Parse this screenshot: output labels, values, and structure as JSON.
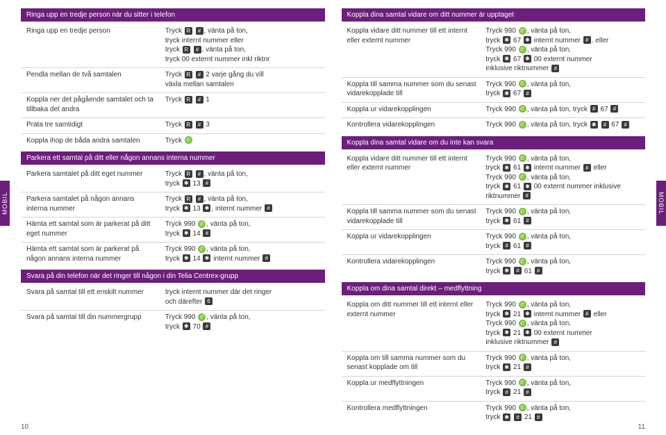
{
  "sidelabel": "MOBIL",
  "pagenum_left": "10",
  "pagenum_right": "11",
  "icons": {
    "R": "R",
    "hash": "#",
    "phone": "✆",
    "star": "✱",
    "four": "4",
    "six": "6"
  },
  "left_col": {
    "sec1": {
      "title": "Ringa upp en tredje person när du sitter i telefon",
      "rows": [
        {
          "l": "Ringa upp en tredje person",
          "r": [
            [
              "Tryck ",
              "R",
              " ",
              "hash",
              ", vänta på ton,"
            ],
            [
              "tryck internt nummer eller"
            ],
            [
              "tryck ",
              "R",
              " ",
              "hash",
              ", vänta på ton,"
            ],
            [
              "tryck 00 externt nummer inkl riktnr"
            ]
          ]
        },
        {
          "l": "Pendla mellan de två samtalen",
          "r": [
            [
              "Tryck ",
              "R",
              " ",
              "hash",
              " 2 varje gång du vill"
            ],
            [
              "växla mellan samtalen"
            ]
          ]
        },
        {
          "l": "Koppla ner det pågående samtalet och ta tillbaka det andra",
          "r": [
            [
              "Tryck ",
              "R",
              " ",
              "hash",
              " 1"
            ]
          ]
        },
        {
          "l": "Prata tre samtidigt",
          "r": [
            [
              "Tryck ",
              "R",
              " ",
              "hash",
              " 3"
            ]
          ]
        },
        {
          "l": "Koppla ihop de båda andra samtalen",
          "r": [
            [
              "Tryck ",
              "phone"
            ]
          ]
        }
      ]
    },
    "sec2": {
      "title": "Parkera ett samtal på ditt eller någon annans interna nummer",
      "rows": [
        {
          "l": "Parkera samtalet på ditt eget nummer",
          "r": [
            [
              "Tryck ",
              "R",
              " ",
              "hash",
              ", vänta på ton,"
            ],
            [
              "tryck ",
              "star",
              " 13 ",
              "hash"
            ]
          ]
        },
        {
          "l": "Parkera samtalet på någon annans interna nummer",
          "r": [
            [
              "Tryck ",
              "R",
              " ",
              "hash",
              ", vänta på ton,"
            ],
            [
              "tryck ",
              "star",
              " 13 ",
              "star",
              ", internt nummer ",
              "hash"
            ]
          ]
        },
        {
          "l": "Hämta ett samtal som är parkerat på ditt eget nummer",
          "r": [
            [
              "Tryck 990 ",
              "phone",
              ", vänta på ton,"
            ],
            [
              "tryck ",
              "star",
              " 14 ",
              "hash"
            ]
          ]
        },
        {
          "l": "Hämta ett samtal som är parkerat på någon annans interna nummer",
          "r": [
            [
              "Tryck 990 ",
              "phone",
              ", vänta på ton,"
            ],
            [
              "tryck ",
              "star",
              " 14 ",
              "star",
              " internt nummer ",
              "hash"
            ]
          ]
        }
      ]
    },
    "sec3": {
      "title": "Svara på din telefon när det ringer till någon i din Telia Centrex-grupp",
      "rows": [
        {
          "l": "Svara på samtal till ett enskilt nummer",
          "r": [
            [
              "tryck internt nummer där det ringer"
            ],
            [
              "och därefter ",
              "six"
            ]
          ]
        },
        {
          "l": "Svara på samtal till din nummergrupp",
          "r": [
            [
              "Tryck 990 ",
              "phone",
              ", vänta på ton,"
            ],
            [
              "tryck ",
              "star",
              " 70 ",
              "hash"
            ]
          ]
        }
      ]
    }
  },
  "right_col": {
    "sec1": {
      "title": "Koppla dina samtal vidare om ditt nummer är upptaget",
      "rows": [
        {
          "l": "Koppla vidare ditt nummer till ett internt eller externt nummer",
          "r": [
            [
              "Tryck 990 ",
              "phone",
              ", vänta på ton,"
            ],
            [
              "tryck ",
              "star",
              " 67 ",
              "star",
              " internt nummer ",
              "hash",
              ". eller"
            ],
            [
              "Tryck 990 ",
              "phone",
              ", vänta på ton,"
            ],
            [
              "tryck ",
              "star",
              " 67 ",
              "star",
              " 00 externt nummer"
            ],
            [
              "inklusive riktnummer ",
              "hash"
            ]
          ]
        },
        {
          "l": "Koppla till samma nummer som du senast vidarekopplade till",
          "r": [
            [
              "Tryck 990 ",
              "phone",
              ", vänta på ton,"
            ],
            [
              "tryck ",
              "star",
              " 67 ",
              "hash"
            ]
          ]
        },
        {
          "l": "Koppla ur vidarekopplingen",
          "r": [
            [
              "Tryck 990 ",
              "phone",
              ", vänta på ton, tryck ",
              "hash",
              " 67 ",
              "hash"
            ]
          ]
        },
        {
          "l": "Kontrollera vidarekopplingen",
          "r": [
            [
              "Tryck 990 ",
              "phone",
              ", vänta på ton, tryck ",
              "star",
              " ",
              "hash",
              " 67 ",
              "hash"
            ]
          ]
        }
      ]
    },
    "sec2": {
      "title": "Koppla dina samtal vidare om du inte kan svara",
      "rows": [
        {
          "l": "Koppla vidare ditt nummer till ett internt eller externt nummer",
          "r": [
            [
              "Tryck 990 ",
              "phone",
              ", vänta på ton,"
            ],
            [
              "tryck ",
              "star",
              " 61 ",
              "star",
              " internt nummer ",
              "hash",
              " eller"
            ],
            [
              "Tryck 990 ",
              "phone",
              ", vänta på ton,"
            ],
            [
              "tryck ",
              "star",
              " 61 ",
              "star",
              " 00 externt nummer inklusive"
            ],
            [
              "riktnummer ",
              "hash"
            ]
          ]
        },
        {
          "l": "Koppla till samma nummer som du senast vidarekopplade till",
          "r": [
            [
              "Tryck 990 ",
              "phone",
              ", vänta på ton,"
            ],
            [
              "tryck ",
              "star",
              " 61 ",
              "hash"
            ]
          ]
        },
        {
          "l": "Koppla ur vidarekopplingen",
          "r": [
            [
              "Tryck 990 ",
              "phone",
              ", vänta på ton,"
            ],
            [
              "tryck ",
              "hash",
              " 61 ",
              "hash"
            ]
          ]
        },
        {
          "l": "Kontrollera vidarekopplingen",
          "r": [
            [
              "Tryck 990 ",
              "phone",
              ", vänta på ton,"
            ],
            [
              "tryck ",
              "star",
              " ",
              "hash",
              " 61 ",
              "hash"
            ]
          ]
        }
      ]
    },
    "sec3": {
      "title": "Koppla om dina samtal direkt – medflyttning",
      "rows": [
        {
          "l": "Koppla om ditt nummer till ett internt eller externt nummer",
          "r": [
            [
              "Tryck 990 ",
              "phone",
              ", vänta på ton,"
            ],
            [
              "tryck ",
              "star",
              " 21 ",
              "star",
              " internt nummer ",
              "hash",
              " eller"
            ],
            [
              "Tryck 990 ",
              "phone",
              ", vänta på ton,"
            ],
            [
              "tryck ",
              "star",
              " 21 ",
              "star",
              " 00 externt nummer"
            ],
            [
              "inklusive riktnummer ",
              "hash"
            ]
          ]
        },
        {
          "l": "Koppla om till samma nummer som du senast kopplade om till",
          "r": [
            [
              "Tryck 990 ",
              "phone",
              ", vänta på ton,"
            ],
            [
              "tryck ",
              "star",
              " 21 ",
              "hash"
            ]
          ]
        },
        {
          "l": "Koppla ur medflyttningen",
          "r": [
            [
              "Tryck 990 ",
              "phone",
              ", vänta på ton,"
            ],
            [
              "tryck ",
              "hash",
              " 21 ",
              "hash"
            ]
          ]
        },
        {
          "l": "Kontrollera medflyttningen",
          "r": [
            [
              "Tryck 990 ",
              "phone",
              ", vänta på ton,"
            ],
            [
              "tryck ",
              "star",
              " ",
              "hash",
              " 21 ",
              "hash"
            ]
          ]
        }
      ]
    }
  }
}
